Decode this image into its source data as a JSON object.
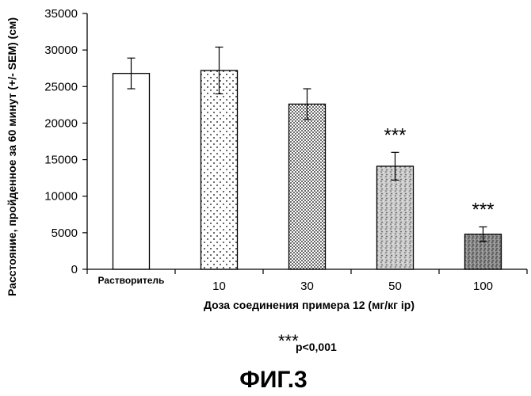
{
  "chart_data": {
    "type": "bar",
    "categories": [
      "Растворитель",
      "10",
      "30",
      "50",
      "100"
    ],
    "values": [
      26800,
      27200,
      22600,
      14100,
      4800
    ],
    "errors": [
      2100,
      3200,
      2100,
      1900,
      1000
    ],
    "significance": [
      "",
      "",
      "",
      "***",
      "***"
    ],
    "patterns": [
      "blank",
      "sparse-dots",
      "dense-dots",
      "stipple",
      "dense-stipple"
    ],
    "ylim": [
      0,
      35000
    ],
    "yticks": [
      0,
      5000,
      10000,
      15000,
      20000,
      25000,
      30000,
      35000
    ],
    "xlabel": "Доза соединения примера 12 (мг/кг ip)",
    "ylabel": "Расстояние, пройденное за 60 минут (+/- SEM) (см)",
    "grid": false
  },
  "footnote": {
    "stars": "***",
    "text": "p<0,001"
  },
  "figure_label": "ФИГ.3"
}
